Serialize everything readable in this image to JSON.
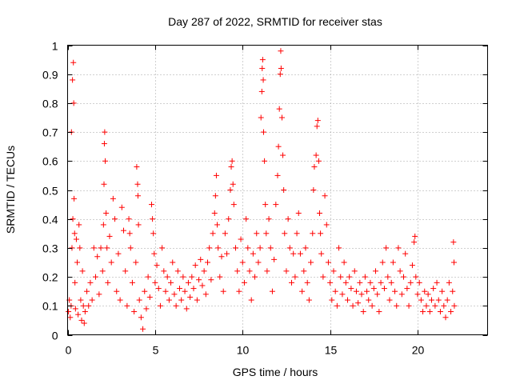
{
  "chart_data": {
    "type": "scatter",
    "title": "Day 287 of 2022, SRMTID for receiver stas",
    "xlabel": "GPS time / hours",
    "ylabel": "SRMTID / TECUs",
    "xlim": [
      0,
      24
    ],
    "ylim": [
      0,
      1
    ],
    "xticks": [
      0,
      5,
      10,
      15,
      20
    ],
    "xtick_labels": [
      "0",
      "5",
      "10",
      "15",
      "20"
    ],
    "yticks": [
      0,
      0.1,
      0.2,
      0.3,
      0.4,
      0.5,
      0.6,
      0.7,
      0.8,
      0.9,
      1
    ],
    "ytick_labels": [
      "0",
      "0.1",
      "0.2",
      "0.3",
      "0.4",
      "0.5",
      "0.6",
      "0.7",
      "0.8",
      "0.9",
      "1"
    ],
    "grid": true,
    "marker": "+",
    "color": "#ff0000",
    "series": [
      {
        "name": "SRMTID",
        "points": [
          [
            0.05,
            0.08
          ],
          [
            0.1,
            0.12
          ],
          [
            0.15,
            0.06
          ],
          [
            0.2,
            0.1
          ],
          [
            0.22,
            0.7
          ],
          [
            0.25,
            0.3
          ],
          [
            0.28,
            0.88
          ],
          [
            0.3,
            0.4
          ],
          [
            0.33,
            0.94
          ],
          [
            0.35,
            0.8
          ],
          [
            0.37,
            0.47
          ],
          [
            0.4,
            0.35
          ],
          [
            0.42,
            0.18
          ],
          [
            0.45,
            0.09
          ],
          [
            0.5,
            0.33
          ],
          [
            0.55,
            0.25
          ],
          [
            0.6,
            0.07
          ],
          [
            0.65,
            0.38
          ],
          [
            0.7,
            0.3
          ],
          [
            0.75,
            0.12
          ],
          [
            0.8,
            0.05
          ],
          [
            0.85,
            0.22
          ],
          [
            0.9,
            0.1
          ],
          [
            0.95,
            0.04
          ],
          [
            1.0,
            0.08
          ],
          [
            1.1,
            0.15
          ],
          [
            1.2,
            0.1
          ],
          [
            1.3,
            0.18
          ],
          [
            1.4,
            0.12
          ],
          [
            1.5,
            0.3
          ],
          [
            1.6,
            0.2
          ],
          [
            1.7,
            0.27
          ],
          [
            1.8,
            0.14
          ],
          [
            1.9,
            0.3
          ],
          [
            2.0,
            0.22
          ],
          [
            2.05,
            0.38
          ],
          [
            2.08,
            0.52
          ],
          [
            2.1,
            0.66
          ],
          [
            2.12,
            0.7
          ],
          [
            2.15,
            0.6
          ],
          [
            2.2,
            0.42
          ],
          [
            2.25,
            0.3
          ],
          [
            2.3,
            0.18
          ],
          [
            2.4,
            0.34
          ],
          [
            2.5,
            0.25
          ],
          [
            2.6,
            0.47
          ],
          [
            2.7,
            0.4
          ],
          [
            2.8,
            0.15
          ],
          [
            2.9,
            0.28
          ],
          [
            3.0,
            0.12
          ],
          [
            3.1,
            0.44
          ],
          [
            3.2,
            0.36
          ],
          [
            3.3,
            0.22
          ],
          [
            3.4,
            0.1
          ],
          [
            3.5,
            0.4
          ],
          [
            3.55,
            0.35
          ],
          [
            3.6,
            0.3
          ],
          [
            3.7,
            0.18
          ],
          [
            3.8,
            0.08
          ],
          [
            3.9,
            0.25
          ],
          [
            3.95,
            0.58
          ],
          [
            4.0,
            0.52
          ],
          [
            4.02,
            0.48
          ],
          [
            4.05,
            0.38
          ],
          [
            4.1,
            0.12
          ],
          [
            4.2,
            0.06
          ],
          [
            4.3,
            0.02
          ],
          [
            4.4,
            0.15
          ],
          [
            4.5,
            0.09
          ],
          [
            4.6,
            0.2
          ],
          [
            4.7,
            0.13
          ],
          [
            4.8,
            0.45
          ],
          [
            4.85,
            0.4
          ],
          [
            4.9,
            0.35
          ],
          [
            4.95,
            0.28
          ],
          [
            5.0,
            0.18
          ],
          [
            5.1,
            0.24
          ],
          [
            5.2,
            0.16
          ],
          [
            5.3,
            0.1
          ],
          [
            5.4,
            0.3
          ],
          [
            5.5,
            0.22
          ],
          [
            5.6,
            0.15
          ],
          [
            5.7,
            0.2
          ],
          [
            5.8,
            0.12
          ],
          [
            5.9,
            0.18
          ],
          [
            6.0,
            0.25
          ],
          [
            6.1,
            0.14
          ],
          [
            6.2,
            0.1
          ],
          [
            6.3,
            0.22
          ],
          [
            6.4,
            0.16
          ],
          [
            6.5,
            0.12
          ],
          [
            6.6,
            0.2
          ],
          [
            6.7,
            0.15
          ],
          [
            6.8,
            0.09
          ],
          [
            6.9,
            0.18
          ],
          [
            7.0,
            0.13
          ],
          [
            7.1,
            0.2
          ],
          [
            7.2,
            0.16
          ],
          [
            7.3,
            0.24
          ],
          [
            7.4,
            0.12
          ],
          [
            7.5,
            0.19
          ],
          [
            7.6,
            0.26
          ],
          [
            7.7,
            0.17
          ],
          [
            7.8,
            0.22
          ],
          [
            7.9,
            0.14
          ],
          [
            8.0,
            0.25
          ],
          [
            8.1,
            0.3
          ],
          [
            8.2,
            0.19
          ],
          [
            8.3,
            0.35
          ],
          [
            8.4,
            0.42
          ],
          [
            8.45,
            0.48
          ],
          [
            8.5,
            0.55
          ],
          [
            8.55,
            0.38
          ],
          [
            8.6,
            0.3
          ],
          [
            8.7,
            0.2
          ],
          [
            8.8,
            0.27
          ],
          [
            8.9,
            0.15
          ],
          [
            9.0,
            0.35
          ],
          [
            9.1,
            0.28
          ],
          [
            9.2,
            0.4
          ],
          [
            9.3,
            0.5
          ],
          [
            9.35,
            0.58
          ],
          [
            9.4,
            0.6
          ],
          [
            9.45,
            0.52
          ],
          [
            9.5,
            0.45
          ],
          [
            9.6,
            0.3
          ],
          [
            9.7,
            0.22
          ],
          [
            9.8,
            0.15
          ],
          [
            9.9,
            0.33
          ],
          [
            10.0,
            0.25
          ],
          [
            10.1,
            0.18
          ],
          [
            10.2,
            0.4
          ],
          [
            10.3,
            0.3
          ],
          [
            10.4,
            0.22
          ],
          [
            10.5,
            0.12
          ],
          [
            10.6,
            0.28
          ],
          [
            10.7,
            0.2
          ],
          [
            10.8,
            0.35
          ],
          [
            10.9,
            0.25
          ],
          [
            11.0,
            0.3
          ],
          [
            11.05,
            0.75
          ],
          [
            11.1,
            0.84
          ],
          [
            11.12,
            0.92
          ],
          [
            11.15,
            0.95
          ],
          [
            11.18,
            0.88
          ],
          [
            11.2,
            0.7
          ],
          [
            11.25,
            0.6
          ],
          [
            11.3,
            0.45
          ],
          [
            11.35,
            0.35
          ],
          [
            11.4,
            0.22
          ],
          [
            11.5,
            0.4
          ],
          [
            11.6,
            0.3
          ],
          [
            11.7,
            0.15
          ],
          [
            11.8,
            0.26
          ],
          [
            11.9,
            0.45
          ],
          [
            12.0,
            0.55
          ],
          [
            12.05,
            0.65
          ],
          [
            12.1,
            0.78
          ],
          [
            12.15,
            0.9
          ],
          [
            12.18,
            0.98
          ],
          [
            12.2,
            0.92
          ],
          [
            12.25,
            0.75
          ],
          [
            12.3,
            0.62
          ],
          [
            12.35,
            0.5
          ],
          [
            12.4,
            0.35
          ],
          [
            12.5,
            0.22
          ],
          [
            12.6,
            0.4
          ],
          [
            12.7,
            0.3
          ],
          [
            12.8,
            0.18
          ],
          [
            12.9,
            0.28
          ],
          [
            13.0,
            0.2
          ],
          [
            13.1,
            0.35
          ],
          [
            13.2,
            0.42
          ],
          [
            13.3,
            0.28
          ],
          [
            13.4,
            0.15
          ],
          [
            13.5,
            0.22
          ],
          [
            13.6,
            0.3
          ],
          [
            13.7,
            0.18
          ],
          [
            13.8,
            0.12
          ],
          [
            13.9,
            0.25
          ],
          [
            14.0,
            0.35
          ],
          [
            14.05,
            0.5
          ],
          [
            14.1,
            0.58
          ],
          [
            14.2,
            0.62
          ],
          [
            14.25,
            0.72
          ],
          [
            14.3,
            0.74
          ],
          [
            14.35,
            0.6
          ],
          [
            14.4,
            0.42
          ],
          [
            14.45,
            0.35
          ],
          [
            14.5,
            0.28
          ],
          [
            14.6,
            0.2
          ],
          [
            14.7,
            0.48
          ],
          [
            14.8,
            0.38
          ],
          [
            14.9,
            0.25
          ],
          [
            15.0,
            0.18
          ],
          [
            15.1,
            0.12
          ],
          [
            15.2,
            0.22
          ],
          [
            15.3,
            0.15
          ],
          [
            15.4,
            0.1
          ],
          [
            15.5,
            0.3
          ],
          [
            15.6,
            0.2
          ],
          [
            15.7,
            0.14
          ],
          [
            15.8,
            0.25
          ],
          [
            15.9,
            0.18
          ],
          [
            16.0,
            0.12
          ],
          [
            16.1,
            0.2
          ],
          [
            16.2,
            0.16
          ],
          [
            16.3,
            0.1
          ],
          [
            16.4,
            0.22
          ],
          [
            16.5,
            0.15
          ],
          [
            16.6,
            0.11
          ],
          [
            16.7,
            0.18
          ],
          [
            16.8,
            0.14
          ],
          [
            16.9,
            0.08
          ],
          [
            17.0,
            0.2
          ],
          [
            17.1,
            0.15
          ],
          [
            17.2,
            0.12
          ],
          [
            17.3,
            0.18
          ],
          [
            17.4,
            0.1
          ],
          [
            17.5,
            0.16
          ],
          [
            17.6,
            0.22
          ],
          [
            17.7,
            0.14
          ],
          [
            17.8,
            0.08
          ],
          [
            17.9,
            0.18
          ],
          [
            18.0,
            0.25
          ],
          [
            18.1,
            0.16
          ],
          [
            18.2,
            0.3
          ],
          [
            18.3,
            0.2
          ],
          [
            18.4,
            0.12
          ],
          [
            18.5,
            0.18
          ],
          [
            18.6,
            0.25
          ],
          [
            18.7,
            0.15
          ],
          [
            18.8,
            0.1
          ],
          [
            18.9,
            0.3
          ],
          [
            19.0,
            0.22
          ],
          [
            19.1,
            0.14
          ],
          [
            19.2,
            0.2
          ],
          [
            19.3,
            0.28
          ],
          [
            19.4,
            0.16
          ],
          [
            19.5,
            0.1
          ],
          [
            19.6,
            0.18
          ],
          [
            19.7,
            0.24
          ],
          [
            19.8,
            0.32
          ],
          [
            19.85,
            0.34
          ],
          [
            19.9,
            0.2
          ],
          [
            20.0,
            0.14
          ],
          [
            20.1,
            0.18
          ],
          [
            20.2,
            0.12
          ],
          [
            20.3,
            0.08
          ],
          [
            20.4,
            0.15
          ],
          [
            20.5,
            0.1
          ],
          [
            20.6,
            0.14
          ],
          [
            20.7,
            0.08
          ],
          [
            20.8,
            0.12
          ],
          [
            20.9,
            0.16
          ],
          [
            21.0,
            0.1
          ],
          [
            21.1,
            0.18
          ],
          [
            21.2,
            0.12
          ],
          [
            21.3,
            0.08
          ],
          [
            21.4,
            0.15
          ],
          [
            21.5,
            0.1
          ],
          [
            21.6,
            0.06
          ],
          [
            21.7,
            0.12
          ],
          [
            21.8,
            0.18
          ],
          [
            21.9,
            0.08
          ],
          [
            22.0,
            0.15
          ],
          [
            22.05,
            0.32
          ],
          [
            22.08,
            0.25
          ],
          [
            22.1,
            0.1
          ]
        ]
      }
    ]
  }
}
